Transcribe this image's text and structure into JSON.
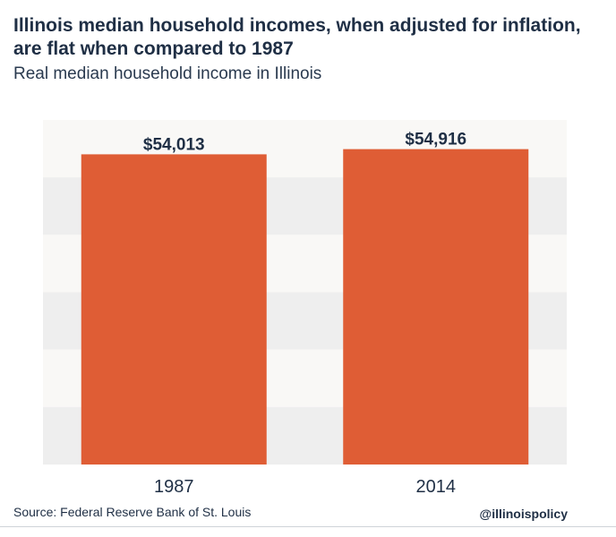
{
  "title": "Illinois median household incomes, when adjusted for inflation, are flat when compared to 1987",
  "subtitle": "Real median household income in Illinois",
  "source": "Source: Federal Reserve Bank of St. Louis",
  "handle": "@illinoispolicy",
  "colors": {
    "bar": "#df5d35",
    "band_light": "#f9f8f6",
    "band_dark": "#eeeeee",
    "text": "#1f2f45",
    "label": "#1f2f45"
  },
  "chart_data": {
    "type": "bar",
    "categories": [
      "1987",
      "2014"
    ],
    "values": [
      54013,
      54916
    ],
    "value_labels": [
      "$54,013",
      "$54,916"
    ],
    "title": "Illinois median household incomes, when adjusted for inflation, are flat when compared to 1987",
    "subtitle": "Real median household income in Illinois",
    "xlabel": "",
    "ylabel": "",
    "ylim": [
      0,
      60000
    ],
    "grid": "alternating horizontal bands",
    "legend": "none"
  }
}
